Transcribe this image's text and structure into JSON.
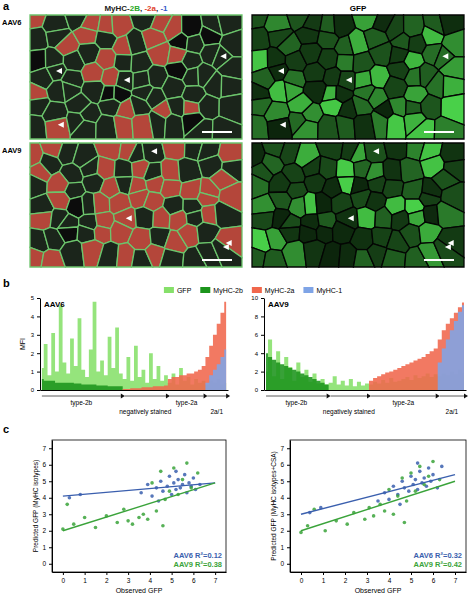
{
  "panel_labels": [
    "a",
    "b",
    "c"
  ],
  "images": {
    "rows": [
      "AAV6",
      "AAV9"
    ],
    "stain_label": [
      {
        "text": "MyHC-",
        "color": "#222222"
      },
      {
        "text": "2B",
        "color": "#2aa82a"
      },
      {
        "text": ", ",
        "color": "#222222"
      },
      {
        "text": "-2a",
        "color": "#e0402a"
      },
      {
        "text": ", ",
        "color": "#222222"
      },
      {
        "text": "-1",
        "color": "#3557c8"
      }
    ],
    "gfp_label": "GFP"
  },
  "chart_data": [
    {
      "type": "area",
      "title": "AAV6",
      "y_label": "MFI",
      "legend": "top",
      "tick_labels": "y",
      "xlim": [
        -0.5,
        49.5
      ],
      "ylim": [
        0,
        5
      ],
      "yticks": [
        0,
        1,
        2,
        3,
        4,
        5
      ],
      "x": [
        0,
        1,
        2,
        3,
        4,
        5,
        6,
        7,
        8,
        9,
        10,
        11,
        12,
        13,
        14,
        15,
        16,
        17,
        18,
        19,
        20,
        21,
        22,
        23,
        24,
        25,
        26,
        27,
        28,
        29,
        30,
        31,
        32,
        33,
        34,
        35,
        36,
        37,
        38,
        39,
        40,
        41,
        42,
        43,
        44,
        45,
        46,
        47,
        48,
        49
      ],
      "groups": [
        {
          "label": "type-2b",
          "start": 0,
          "end": 21
        },
        {
          "label": "negatively stained",
          "start": 22,
          "end": 33
        },
        {
          "label": "type-2a",
          "start": 34,
          "end": 43
        },
        {
          "label": "2a/1",
          "start": 44,
          "end": 49
        }
      ],
      "series": [
        {
          "name": "GFP",
          "color": "#86e06a",
          "values": [
            1.2,
            2.5,
            0.8,
            3.1,
            1.0,
            4.6,
            1.5,
            0.9,
            2.8,
            1.3,
            3.9,
            1.1,
            0.7,
            2.2,
            4.8,
            1.0,
            1.6,
            0.8,
            2.9,
            1.2,
            3.4,
            0.9,
            0.6,
            1.8,
            0.5,
            2.4,
            0.7,
            1.1,
            0.4,
            2.0,
            0.6,
            1.3,
            0.5,
            0.8,
            0.4,
            0.9,
            0.3,
            1.2,
            0.5,
            0.7,
            0.3,
            0.6,
            0.4,
            0.5,
            0.3,
            0.5,
            0.4,
            0.6,
            0.3,
            0.4
          ]
        },
        {
          "name": "MyHC-2b",
          "color": "#1c941c",
          "values": [
            0.6,
            0.5,
            0.5,
            0.5,
            0.4,
            0.4,
            0.4,
            0.4,
            0.4,
            0.35,
            0.35,
            0.3,
            0.3,
            0.3,
            0.3,
            0.25,
            0.25,
            0.25,
            0.2,
            0.2,
            0.2,
            0.2,
            0,
            0,
            0,
            0,
            0,
            0,
            0,
            0,
            0,
            0,
            0,
            0,
            0,
            0,
            0,
            0,
            0,
            0,
            0,
            0,
            0,
            0,
            0,
            0,
            0,
            0,
            0,
            0
          ]
        },
        {
          "name": "MyHC-2a",
          "color": "#f0674c",
          "values": [
            0,
            0,
            0,
            0,
            0,
            0,
            0,
            0,
            0,
            0,
            0,
            0,
            0,
            0,
            0,
            0,
            0,
            0,
            0,
            0,
            0,
            0,
            0.05,
            0.05,
            0.1,
            0.1,
            0.1,
            0.15,
            0.15,
            0.15,
            0.2,
            0.2,
            0.2,
            0.25,
            0.6,
            0.7,
            0.7,
            0.8,
            0.8,
            0.9,
            0.9,
            1.0,
            1.1,
            1.3,
            1.8,
            2.4,
            3.0,
            3.6,
            4.2,
            4.8
          ]
        },
        {
          "name": "MyHC-1",
          "color": "#7fa4e6",
          "values": [
            0,
            0,
            0,
            0,
            0,
            0,
            0,
            0,
            0,
            0,
            0,
            0,
            0,
            0,
            0,
            0,
            0,
            0,
            0,
            0,
            0,
            0,
            0,
            0,
            0,
            0,
            0,
            0,
            0,
            0,
            0,
            0,
            0,
            0,
            0,
            0,
            0,
            0,
            0,
            0,
            0,
            0,
            0,
            0,
            0.4,
            0.8,
            1.1,
            1.4,
            1.8,
            2.2
          ]
        }
      ]
    },
    {
      "type": "area",
      "title": "AAV9",
      "tick_labels": "y",
      "xlim": [
        -0.5,
        49.5
      ],
      "ylim": [
        0,
        10
      ],
      "yticks": [
        0,
        2,
        4,
        6,
        8,
        10
      ],
      "x": [
        0,
        1,
        2,
        3,
        4,
        5,
        6,
        7,
        8,
        9,
        10,
        11,
        12,
        13,
        14,
        15,
        16,
        17,
        18,
        19,
        20,
        21,
        22,
        23,
        24,
        25,
        26,
        27,
        28,
        29,
        30,
        31,
        32,
        33,
        34,
        35,
        36,
        37,
        38,
        39,
        40,
        41,
        42,
        43,
        44,
        45,
        46,
        47,
        48,
        49
      ],
      "groups": [
        {
          "label": "type-2b",
          "start": 0,
          "end": 15
        },
        {
          "label": "negatively stained",
          "start": 16,
          "end": 25
        },
        {
          "label": "type-2a",
          "start": 26,
          "end": 42
        },
        {
          "label": "2a/1",
          "start": 43,
          "end": 49
        }
      ],
      "series": [
        {
          "color": "#86e06a",
          "values": [
            2.0,
            5.5,
            1.5,
            4.2,
            1.2,
            3.6,
            2.5,
            1.0,
            3.0,
            1.4,
            2.2,
            0.9,
            1.8,
            0.7,
            1.2,
            0.6,
            0.8,
            1.5,
            0.6,
            1.0,
            0.5,
            1.2,
            0.4,
            0.9,
            0.5,
            0.7,
            0.6,
            0.9,
            0.7,
            1.1,
            0.8,
            1.3,
            0.9,
            1.0,
            1.2,
            1.4,
            1.1,
            1.6,
            1.3,
            1.5,
            1.8,
            1.4,
            1.7,
            1.5,
            1.8,
            1.6,
            2.0,
            1.7,
            2.2,
            1.9
          ]
        },
        {
          "color": "#1c941c",
          "values": [
            4.0,
            3.6,
            3.3,
            3.0,
            2.8,
            2.6,
            2.4,
            2.2,
            2.0,
            1.8,
            1.6,
            1.4,
            1.2,
            1.0,
            0.8,
            0.6,
            0,
            0,
            0,
            0,
            0,
            0,
            0,
            0,
            0,
            0,
            0,
            0,
            0,
            0,
            0,
            0,
            0,
            0,
            0,
            0,
            0,
            0,
            0,
            0,
            0,
            0,
            0,
            0,
            0,
            0,
            0,
            0,
            0,
            0
          ]
        },
        {
          "color": "#f0674c",
          "values": [
            0,
            0,
            0,
            0,
            0,
            0,
            0,
            0,
            0,
            0,
            0,
            0,
            0,
            0,
            0,
            0,
            0,
            0,
            0,
            0,
            0,
            0,
            0,
            0,
            0,
            0,
            1.0,
            1.3,
            1.5,
            1.7,
            1.9,
            2.0,
            2.2,
            2.4,
            2.6,
            2.8,
            3.0,
            3.2,
            3.4,
            3.6,
            3.9,
            4.2,
            4.5,
            5.5,
            6.5,
            7.2,
            7.8,
            8.4,
            9.0,
            9.5
          ]
        },
        {
          "color": "#7fa4e6",
          "values": [
            0,
            0,
            0,
            0,
            0,
            0,
            0,
            0,
            0,
            0,
            0,
            0,
            0,
            0,
            0,
            0,
            0,
            0,
            0,
            0,
            0,
            0,
            0,
            0,
            0,
            0,
            0,
            0,
            0,
            0,
            0,
            0,
            0,
            0,
            0,
            0,
            0,
            0,
            0,
            0,
            0,
            0,
            0,
            3.0,
            4.5,
            5.5,
            6.5,
            7.5,
            8.5,
            9.2
          ]
        }
      ]
    },
    {
      "type": "scatter",
      "x_label": "Observed GFP",
      "y_label": "Predicted GFP (MyHC isotypes)",
      "xlim": [
        -0.5,
        7.5
      ],
      "ylim": [
        -0.5,
        7.5
      ],
      "xticks": [
        0,
        1,
        2,
        3,
        4,
        5,
        6,
        7
      ],
      "yticks": [
        0,
        1,
        2,
        3,
        4,
        5,
        6,
        7
      ],
      "series": [
        {
          "name": "AAV6 R²=0.12",
          "color": "#3a5fae",
          "x": [
            0.3,
            0.8,
            3.6,
            3.9,
            4.1,
            4.3,
            4.5,
            4.6,
            4.8,
            4.9,
            5.0,
            5.1,
            5.2,
            5.3,
            5.4,
            5.5,
            5.6,
            5.7,
            5.8,
            5.9,
            6.0,
            6.1,
            6.3,
            4.4,
            5.2
          ],
          "values": [
            4.0,
            4.2,
            4.3,
            4.8,
            4.1,
            4.6,
            5.0,
            4.4,
            4.7,
            5.3,
            4.2,
            4.9,
            4.5,
            5.1,
            4.6,
            4.8,
            5.4,
            4.3,
            4.9,
            4.7,
            5.2,
            4.5,
            4.8,
            3.8,
            5.6
          ],
          "fit_x": [
            0,
            7
          ],
          "fit_y": [
            4.1,
            4.9
          ]
        },
        {
          "name": "AAV9 R²=0.38",
          "color": "#3aa33a",
          "x": [
            0.0,
            0.2,
            0.5,
            1.0,
            1.5,
            2.0,
            2.5,
            2.8,
            3.0,
            3.2,
            3.5,
            3.7,
            3.9,
            4.1,
            4.3,
            4.5,
            4.7,
            4.9,
            5.1,
            5.3,
            5.5,
            5.7,
            5.9,
            6.2,
            4.6
          ],
          "values": [
            2.1,
            3.6,
            2.4,
            2.8,
            2.2,
            2.9,
            2.5,
            3.3,
            2.6,
            2.4,
            2.8,
            3.0,
            2.7,
            4.9,
            3.2,
            5.6,
            3.9,
            4.4,
            5.8,
            4.2,
            5.1,
            6.1,
            4.6,
            5.5,
            2.3
          ],
          "fit_x": [
            0,
            7
          ],
          "fit_y": [
            2.0,
            4.9
          ]
        }
      ]
    },
    {
      "type": "scatter",
      "x_label": "Observed GFP",
      "y_label": "Predicted GFP (MyHC isotypes+CSA)",
      "xlim": [
        -0.5,
        7.5
      ],
      "ylim": [
        -0.5,
        7.5
      ],
      "xticks": [
        0,
        1,
        2,
        3,
        4,
        5,
        6,
        7
      ],
      "yticks": [
        0,
        1,
        2,
        3,
        4,
        5,
        6,
        7
      ],
      "series": [
        {
          "name": "AAV6 R²=0.32",
          "color": "#3a5fae",
          "x": [
            0.4,
            0.9,
            3.5,
            3.8,
            4.0,
            4.2,
            4.4,
            4.6,
            4.7,
            4.9,
            5.0,
            5.1,
            5.2,
            5.3,
            5.4,
            5.5,
            5.6,
            5.7,
            5.8,
            5.9,
            6.0,
            6.2,
            6.4,
            4.5,
            5.3
          ],
          "values": [
            3.1,
            3.4,
            3.8,
            4.3,
            3.9,
            4.7,
            4.2,
            5.0,
            4.6,
            4.4,
            5.3,
            4.8,
            5.1,
            4.5,
            5.6,
            4.9,
            5.2,
            4.7,
            5.8,
            5.0,
            5.4,
            4.6,
            5.9,
            3.6,
            6.1
          ],
          "fit_x": [
            0,
            7
          ],
          "fit_y": [
            3.0,
            5.4
          ]
        },
        {
          "name": "AAV9 R²=0.42",
          "color": "#3aa33a",
          "x": [
            0.0,
            0.3,
            0.6,
            1.1,
            1.6,
            2.1,
            2.4,
            2.9,
            3.1,
            3.3,
            3.6,
            3.8,
            4.0,
            4.2,
            4.4,
            4.6,
            4.8,
            5.0,
            5.2,
            5.4,
            5.6,
            5.8,
            6.0,
            6.3,
            4.7
          ],
          "values": [
            1.9,
            2.3,
            3.3,
            2.0,
            2.6,
            2.4,
            3.1,
            2.7,
            3.4,
            2.9,
            3.6,
            3.2,
            4.5,
            3.0,
            4.1,
            5.2,
            3.8,
            5.5,
            4.4,
            5.9,
            4.8,
            5.3,
            6.2,
            5.1,
            2.5
          ],
          "fit_x": [
            0,
            7
          ],
          "fit_y": [
            2.0,
            5.0
          ]
        }
      ]
    }
  ]
}
